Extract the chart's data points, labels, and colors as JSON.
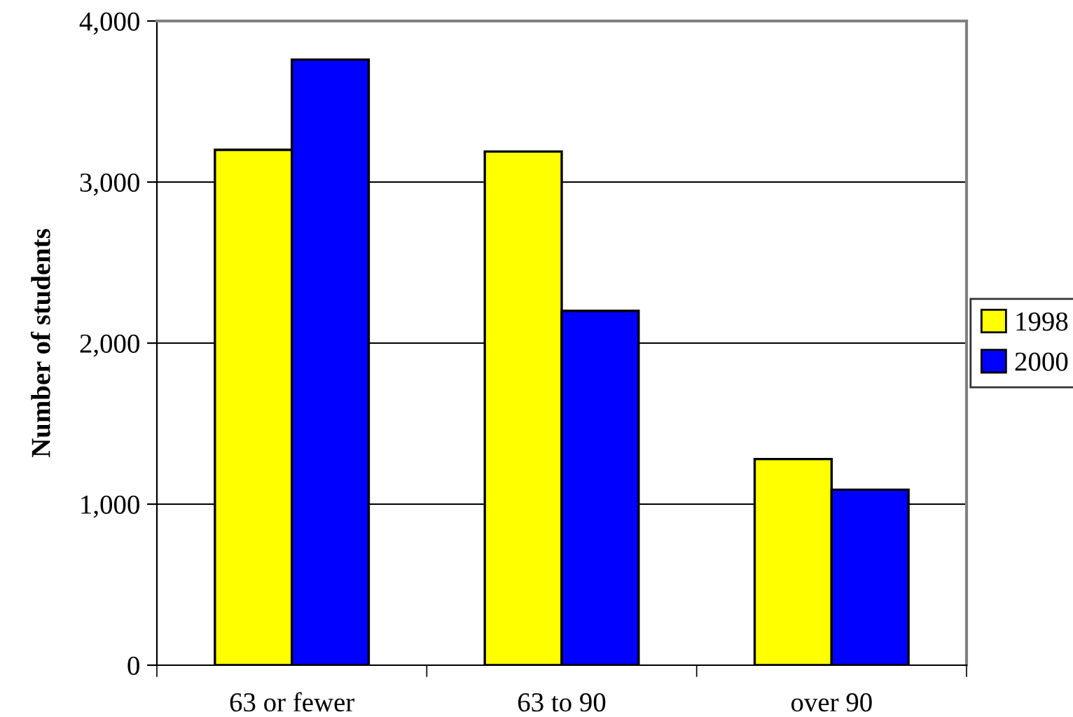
{
  "chart_data": {
    "type": "bar",
    "ylabel": "Number of students",
    "categories": [
      "63 or fewer",
      "63 to 90",
      "over 90"
    ],
    "series": [
      {
        "name": "1998",
        "color": "#ffff00",
        "values": [
          3200,
          3190,
          1280
        ]
      },
      {
        "name": "2000",
        "color": "#0000ff",
        "values": [
          3760,
          2200,
          1090
        ]
      }
    ],
    "ylim": [
      0,
      4000
    ],
    "yticks": [
      {
        "value": 0,
        "label": "0"
      },
      {
        "value": 1000,
        "label": "1,000"
      },
      {
        "value": 2000,
        "label": "2,000"
      },
      {
        "value": 3000,
        "label": "3,000"
      },
      {
        "value": 4000,
        "label": "4,000"
      }
    ],
    "grid": "y",
    "legend": "right"
  }
}
